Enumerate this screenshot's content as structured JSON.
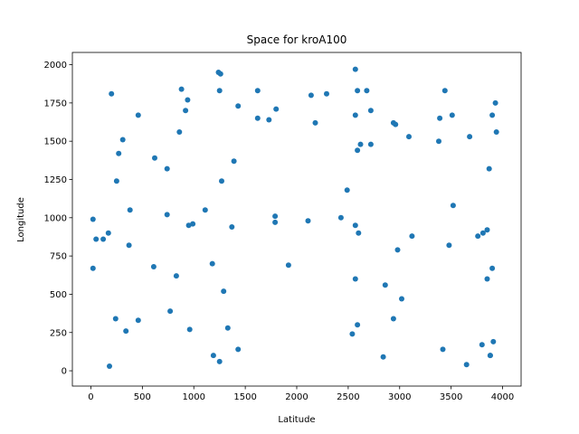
{
  "chart_data": {
    "type": "scatter",
    "title": "Space for kroA100",
    "xlabel": "Latitude",
    "ylabel": "Longitude",
    "xlim": [
      -180,
      4180
    ],
    "ylim": [
      -100,
      2080
    ],
    "xticks": [
      0,
      500,
      1000,
      1500,
      2000,
      2500,
      3000,
      3500,
      4000
    ],
    "yticks": [
      0,
      250,
      500,
      750,
      1000,
      1250,
      1500,
      1750,
      2000
    ],
    "grid": false,
    "legend": "none",
    "marker_color": "#1f77b4",
    "series": [
      {
        "x": [
          1240,
          1260,
          1250,
          880,
          200,
          460,
          270,
          310,
          250,
          620,
          740,
          860,
          940,
          920,
          1390,
          1430,
          1620,
          1620,
          1730,
          1800,
          1790,
          1790,
          2140,
          2180,
          2290,
          2570,
          2590,
          2570,
          2680,
          2620,
          2720,
          2720,
          2590,
          2490,
          2430,
          2570,
          2600,
          2940,
          2960,
          3090,
          3390,
          3380,
          3440,
          3510,
          3680,
          3930,
          3900,
          3940,
          3870,
          3850,
          3520,
          3760,
          3810,
          2980,
          3120,
          3480,
          3850,
          3900,
          3880,
          3800,
          3910,
          3880,
          3650,
          3420,
          2940,
          3020,
          2860,
          2840,
          2590,
          2570,
          2540,
          20,
          50,
          120,
          170,
          380,
          370,
          20,
          610,
          740,
          990,
          950,
          1110,
          1370,
          1920,
          2110,
          1180,
          1290,
          830,
          770,
          460,
          240,
          340,
          960,
          1330,
          1190,
          1250,
          1430,
          180,
          1270
        ],
        "y": [
          1950,
          1940,
          1830,
          1840,
          1810,
          1670,
          1420,
          1510,
          1240,
          1390,
          1320,
          1560,
          1770,
          1700,
          1370,
          1730,
          1830,
          1650,
          1640,
          1710,
          1010,
          970,
          1800,
          1620,
          1810,
          1970,
          1830,
          1670,
          1830,
          1480,
          1700,
          1480,
          1440,
          1180,
          1000,
          950,
          900,
          1620,
          1610,
          1530,
          1650,
          1500,
          1830,
          1670,
          1530,
          1750,
          1670,
          1560,
          1320,
          920,
          1080,
          880,
          900,
          790,
          880,
          820,
          600,
          670,
          100,
          170,
          190,
          100,
          40,
          140,
          340,
          470,
          560,
          90,
          300,
          600,
          240,
          990,
          860,
          860,
          900,
          1050,
          820,
          670,
          680,
          1020,
          960,
          950,
          1050,
          940,
          690,
          980,
          700,
          520,
          620,
          390,
          330,
          340,
          260,
          270,
          280,
          100,
          60,
          140,
          30,
          1240
        ]
      }
    ]
  }
}
